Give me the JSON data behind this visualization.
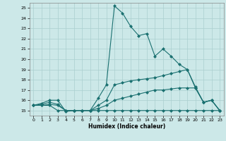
{
  "title": "",
  "xlabel": "Humidex (Indice chaleur)",
  "background_color": "#cce8e8",
  "grid_color": "#aacfcf",
  "line_color": "#1a7070",
  "xlim": [
    -0.5,
    23.5
  ],
  "ylim": [
    14.5,
    25.5
  ],
  "xticks": [
    0,
    1,
    2,
    3,
    4,
    5,
    6,
    7,
    8,
    9,
    10,
    11,
    12,
    13,
    14,
    15,
    16,
    17,
    18,
    19,
    20,
    21,
    22,
    23
  ],
  "yticks": [
    15,
    16,
    17,
    18,
    19,
    20,
    21,
    22,
    23,
    24,
    25
  ],
  "series1_x": [
    0,
    1,
    2,
    3,
    4,
    5,
    6,
    7,
    8,
    9,
    10,
    11,
    12,
    13,
    14,
    15,
    16,
    17,
    18,
    19,
    20,
    21,
    22,
    23
  ],
  "series1_y": [
    15.5,
    15.7,
    16.0,
    16.0,
    14.9,
    15.0,
    15.0,
    15.0,
    16.2,
    17.5,
    25.2,
    24.5,
    23.2,
    22.3,
    22.5,
    20.3,
    21.0,
    20.3,
    19.5,
    19.0,
    17.3,
    15.8,
    16.0,
    15.0
  ],
  "series2_x": [
    0,
    1,
    2,
    3,
    4,
    5,
    6,
    7,
    8,
    9,
    10,
    11,
    12,
    13,
    14,
    15,
    16,
    17,
    18,
    19,
    20,
    21,
    22,
    23
  ],
  "series2_y": [
    15.5,
    15.6,
    15.8,
    15.6,
    15.0,
    15.0,
    15.0,
    15.0,
    15.5,
    16.0,
    17.5,
    17.7,
    17.9,
    18.0,
    18.1,
    18.2,
    18.4,
    18.6,
    18.8,
    19.0,
    17.2,
    15.8,
    16.0,
    15.0
  ],
  "series3_x": [
    0,
    1,
    2,
    3,
    4,
    5,
    6,
    7,
    8,
    9,
    10,
    11,
    12,
    13,
    14,
    15,
    16,
    17,
    18,
    19,
    20,
    21,
    22,
    23
  ],
  "series3_y": [
    15.5,
    15.5,
    15.6,
    15.5,
    15.0,
    15.0,
    15.0,
    15.0,
    15.2,
    15.5,
    16.0,
    16.2,
    16.4,
    16.6,
    16.8,
    17.0,
    17.0,
    17.1,
    17.2,
    17.2,
    17.2,
    15.8,
    16.0,
    15.0
  ],
  "series4_x": [
    0,
    1,
    2,
    3,
    4,
    5,
    6,
    7,
    8,
    9,
    10,
    11,
    12,
    13,
    14,
    15,
    16,
    17,
    18,
    19,
    20,
    21,
    22,
    23
  ],
  "series4_y": [
    15.5,
    15.5,
    15.5,
    15.0,
    15.0,
    15.0,
    15.0,
    15.0,
    15.0,
    15.0,
    15.0,
    15.0,
    15.0,
    15.0,
    15.0,
    15.0,
    15.0,
    15.0,
    15.0,
    15.0,
    15.0,
    15.0,
    15.0,
    15.0
  ]
}
